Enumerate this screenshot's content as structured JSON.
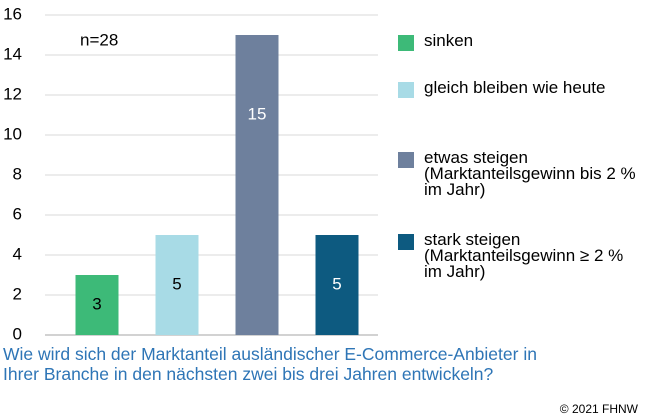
{
  "chart_data": {
    "type": "bar",
    "categories": [
      "sinken",
      "gleich bleiben wie heute",
      "etwas steigen (Marktanteilsgewinn bis 2 % im Jahr)",
      "stark steigen (Marktanteilsgewinn ≥ 2 % im Jahr)"
    ],
    "values": [
      3,
      5,
      15,
      5
    ],
    "colors": [
      "#3dba78",
      "#a8dbe6",
      "#6e809d",
      "#0d5a80"
    ],
    "label_colors": [
      "#000000",
      "#000000",
      "#ffffff",
      "#ffffff"
    ],
    "ylim": [
      0,
      16
    ],
    "yticks": [
      0,
      2,
      4,
      6,
      8,
      10,
      12,
      14,
      16
    ],
    "grid": true,
    "annotation": "n=28",
    "caption": "Wie wird sich der Marktanteil ausländischer E-Commerce-Anbieter in Ihrer Branche in den nächsten zwei bis drei Jahren entwickeln?",
    "copyright": "© 2021 FHNW"
  }
}
